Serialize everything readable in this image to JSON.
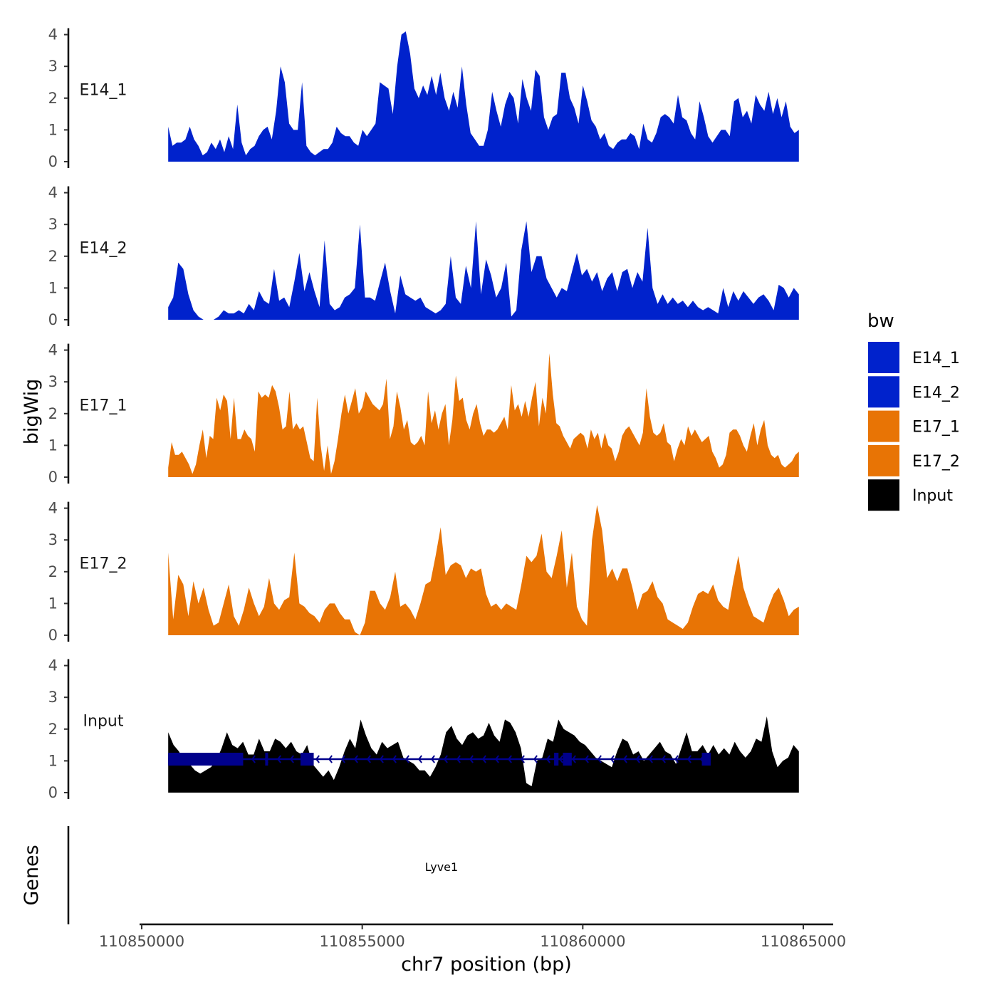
{
  "chart_data": {
    "type": "area",
    "x_label": "chr7 position (bp)",
    "y_label": "bigWig",
    "genes_label": "Genes",
    "x_range": [
      110850000,
      110865000
    ],
    "x_ticks": [
      "110850000",
      "110855000",
      "110860000",
      "110865000"
    ],
    "y_range": [
      0,
      4.2
    ],
    "y_ticks": [
      "0",
      "1",
      "2",
      "3",
      "4"
    ],
    "legend": {
      "title": "bw",
      "items": [
        {
          "label": "E14_1",
          "color": "#0022CC"
        },
        {
          "label": "E14_2",
          "color": "#0022CC"
        },
        {
          "label": "E17_1",
          "color": "#E87405"
        },
        {
          "label": "E17_2",
          "color": "#E87405"
        },
        {
          "label": "Input",
          "color": "#000000"
        }
      ]
    },
    "series": [
      {
        "name": "E14_1",
        "color": "#0022CC",
        "start": 110850600,
        "end": 110864900,
        "values": [
          1.1,
          0.5,
          0.6,
          0.6,
          0.7,
          1.1,
          0.7,
          0.5,
          0.2,
          0.3,
          0.6,
          0.4,
          0.7,
          0.3,
          0.8,
          0.4,
          1.8,
          0.6,
          0.2,
          0.4,
          0.5,
          0.8,
          1.0,
          1.1,
          0.7,
          1.6,
          3.0,
          2.5,
          1.2,
          1.0,
          1.0,
          2.5,
          0.5,
          0.3,
          0.2,
          0.3,
          0.4,
          0.4,
          0.6,
          1.1,
          0.9,
          0.8,
          0.8,
          0.6,
          0.5,
          1.0,
          0.8,
          1.0,
          1.2,
          2.5,
          2.4,
          2.3,
          1.5,
          3.0,
          4.0,
          4.1,
          3.4,
          2.3,
          2.0,
          2.4,
          2.1,
          2.7,
          2.1,
          2.8,
          2.0,
          1.6,
          2.2,
          1.7,
          3.0,
          1.8,
          0.9,
          0.7,
          0.5,
          0.5,
          1.0,
          2.2,
          1.6,
          1.1,
          1.8,
          2.2,
          2.0,
          1.2,
          2.6,
          2.0,
          1.6,
          2.9,
          2.7,
          1.4,
          1.0,
          1.4,
          1.5,
          2.8,
          2.8,
          2.0,
          1.7,
          1.2,
          2.4,
          1.9,
          1.3,
          1.1,
          0.7,
          0.9,
          0.5,
          0.4,
          0.6,
          0.7,
          0.7,
          0.9,
          0.8,
          0.4,
          1.2,
          0.7,
          0.6,
          0.9,
          1.4,
          1.5,
          1.4,
          1.2,
          2.1,
          1.4,
          1.3,
          0.9,
          0.7,
          1.9,
          1.4,
          0.8,
          0.6,
          0.8,
          1.0,
          1.0,
          0.8,
          1.9,
          2.0,
          1.4,
          1.6,
          1.2,
          2.1,
          1.8,
          1.6,
          2.2,
          1.5,
          2.0,
          1.4,
          1.9,
          1.1,
          0.9,
          1.0
        ]
      },
      {
        "name": "E14_2",
        "color": "#0022CC",
        "start": 110850600,
        "end": 110864900,
        "values": [
          0.4,
          0.7,
          1.8,
          1.6,
          0.8,
          0.3,
          0.1,
          0.0,
          0.0,
          0.0,
          0.1,
          0.3,
          0.2,
          0.2,
          0.3,
          0.2,
          0.5,
          0.3,
          0.9,
          0.6,
          0.5,
          1.6,
          0.6,
          0.7,
          0.4,
          1.2,
          2.1,
          0.9,
          1.5,
          0.9,
          0.4,
          2.5,
          0.5,
          0.3,
          0.4,
          0.7,
          0.8,
          1.0,
          3.0,
          0.7,
          0.7,
          0.6,
          1.2,
          1.8,
          0.9,
          0.2,
          1.4,
          0.8,
          0.7,
          0.6,
          0.7,
          0.4,
          0.3,
          0.2,
          0.3,
          0.5,
          2.0,
          0.7,
          0.5,
          1.7,
          1.0,
          3.1,
          0.8,
          1.9,
          1.4,
          0.7,
          1.0,
          1.8,
          0.1,
          0.3,
          2.2,
          3.1,
          1.5,
          2.0,
          2.0,
          1.3,
          1.0,
          0.7,
          1.0,
          0.9,
          1.5,
          2.1,
          1.4,
          1.6,
          1.2,
          1.5,
          0.9,
          1.3,
          1.5,
          0.9,
          1.5,
          1.6,
          1.0,
          1.5,
          1.2,
          2.9,
          1.0,
          0.5,
          0.8,
          0.5,
          0.7,
          0.5,
          0.6,
          0.4,
          0.6,
          0.4,
          0.3,
          0.4,
          0.3,
          0.2,
          1.0,
          0.4,
          0.9,
          0.6,
          0.9,
          0.7,
          0.5,
          0.7,
          0.8,
          0.6,
          0.3,
          1.1,
          1.0,
          0.7,
          1.0,
          0.8
        ]
      },
      {
        "name": "E17_1",
        "color": "#E87405",
        "start": 110850600,
        "end": 110864900,
        "values": [
          0.3,
          1.1,
          0.7,
          0.7,
          0.8,
          0.6,
          0.4,
          0.1,
          0.4,
          1.0,
          1.5,
          0.6,
          1.3,
          1.2,
          2.5,
          2.1,
          2.6,
          2.4,
          1.2,
          2.5,
          1.2,
          1.2,
          1.5,
          1.3,
          1.2,
          0.8,
          2.7,
          2.5,
          2.6,
          2.5,
          2.9,
          2.7,
          2.2,
          1.5,
          1.6,
          2.7,
          1.5,
          1.7,
          1.5,
          1.6,
          1.1,
          0.6,
          0.5,
          2.5,
          1.0,
          0.2,
          1.0,
          0.1,
          0.5,
          1.2,
          2.0,
          2.6,
          2.0,
          2.4,
          2.8,
          2.0,
          2.2,
          2.7,
          2.5,
          2.3,
          2.2,
          2.1,
          2.3,
          3.1,
          1.2,
          1.6,
          2.7,
          2.2,
          1.5,
          1.8,
          1.1,
          1.0,
          1.1,
          1.3,
          1.0,
          2.7,
          1.7,
          2.1,
          1.5,
          2.0,
          2.3,
          1.0,
          1.8,
          3.2,
          2.4,
          2.5,
          1.8,
          1.5,
          2.0,
          2.3,
          1.7,
          1.3,
          1.5,
          1.5,
          1.4,
          1.5,
          1.7,
          1.9,
          1.5,
          2.9,
          2.1,
          2.3,
          1.9,
          2.4,
          1.9,
          2.5,
          3.0,
          1.6,
          2.5,
          2.0,
          3.9,
          2.6,
          1.7,
          1.6,
          1.3,
          1.1,
          0.9,
          1.2,
          1.3,
          1.4,
          1.3,
          0.9,
          1.5,
          1.2,
          1.4,
          0.9,
          1.4,
          1.0,
          0.9,
          0.5,
          0.8,
          1.3,
          1.5,
          1.6,
          1.4,
          1.2,
          1.0,
          1.4,
          2.8,
          1.9,
          1.4,
          1.3,
          1.4,
          1.7,
          1.1,
          1.0,
          0.5,
          0.9,
          1.2,
          1.0,
          1.6,
          1.3,
          1.5,
          1.3,
          1.1,
          1.2,
          1.3,
          0.8,
          0.6,
          0.3,
          0.4,
          0.7,
          1.4,
          1.5,
          1.5,
          1.3,
          1.0,
          0.8,
          1.3,
          1.7,
          1.0,
          1.5,
          1.8,
          1.0,
          0.7,
          0.6,
          0.7,
          0.4,
          0.3,
          0.4,
          0.5,
          0.7,
          0.8
        ]
      },
      {
        "name": "E17_2",
        "color": "#E87405",
        "start": 110850600,
        "end": 110864900,
        "values": [
          2.6,
          0.5,
          1.9,
          1.6,
          0.6,
          1.7,
          1.0,
          1.5,
          0.8,
          0.3,
          0.4,
          1.0,
          1.6,
          0.6,
          0.3,
          0.8,
          1.5,
          1.0,
          0.6,
          0.9,
          1.8,
          1.0,
          0.8,
          1.1,
          1.2,
          2.6,
          1.0,
          0.9,
          0.7,
          0.6,
          0.4,
          0.8,
          1.0,
          1.0,
          0.7,
          0.5,
          0.5,
          0.1,
          0.0,
          0.4,
          1.4,
          1.4,
          1.0,
          0.8,
          1.2,
          2.0,
          0.9,
          1.0,
          0.8,
          0.5,
          1.0,
          1.6,
          1.7,
          2.5,
          3.4,
          1.9,
          2.2,
          2.3,
          2.2,
          1.8,
          2.1,
          2.0,
          2.1,
          1.3,
          0.9,
          1.0,
          0.8,
          1.0,
          0.9,
          0.8,
          1.6,
          2.5,
          2.3,
          2.5,
          3.2,
          2.0,
          1.8,
          2.5,
          3.3,
          1.5,
          2.6,
          0.9,
          0.5,
          0.3,
          3.0,
          4.1,
          3.3,
          1.8,
          2.1,
          1.7,
          2.1,
          2.1,
          1.5,
          0.8,
          1.3,
          1.4,
          1.7,
          1.2,
          1.0,
          0.5,
          0.4,
          0.3,
          0.2,
          0.4,
          0.9,
          1.3,
          1.4,
          1.3,
          1.6,
          1.1,
          0.9,
          0.8,
          1.7,
          2.5,
          1.5,
          1.0,
          0.6,
          0.5,
          0.4,
          0.9,
          1.3,
          1.5,
          1.1,
          0.6,
          0.8,
          0.9
        ]
      },
      {
        "name": "Input",
        "color": "#000000",
        "start": 110850600,
        "end": 110864900,
        "values": [
          1.9,
          1.5,
          1.3,
          1.0,
          0.9,
          0.7,
          0.6,
          0.7,
          0.8,
          1.0,
          1.4,
          1.9,
          1.5,
          1.4,
          1.6,
          1.2,
          1.2,
          1.7,
          1.3,
          1.3,
          1.7,
          1.6,
          1.4,
          1.6,
          1.3,
          1.2,
          1.5,
          0.9,
          0.7,
          0.5,
          0.7,
          0.4,
          0.8,
          1.3,
          1.7,
          1.4,
          2.3,
          1.8,
          1.4,
          1.2,
          1.6,
          1.4,
          1.5,
          1.6,
          1.1,
          1.0,
          0.9,
          0.7,
          0.7,
          0.5,
          0.8,
          1.2,
          1.9,
          2.1,
          1.7,
          1.5,
          1.8,
          1.9,
          1.7,
          1.8,
          2.2,
          1.8,
          1.6,
          2.3,
          2.2,
          1.9,
          1.4,
          0.3,
          0.2,
          1.0,
          1.1,
          1.7,
          1.6,
          2.3,
          2.0,
          1.9,
          1.8,
          1.6,
          1.5,
          1.3,
          1.1,
          1.0,
          0.9,
          0.8,
          1.3,
          1.7,
          1.6,
          1.2,
          1.3,
          1.0,
          1.2,
          1.4,
          1.6,
          1.3,
          1.2,
          0.9,
          1.4,
          1.9,
          1.3,
          1.3,
          1.5,
          1.2,
          1.5,
          1.2,
          1.4,
          1.2,
          1.6,
          1.3,
          1.1,
          1.3,
          1.7,
          1.6,
          2.4,
          1.3,
          0.8,
          1.0,
          1.1,
          1.5,
          1.3
        ]
      }
    ],
    "gene": {
      "name": "Lyve1",
      "strand": "-",
      "start": 110850600,
      "end": 110862900,
      "color": "#00008B",
      "exons": [
        [
          110850600,
          110852300
        ],
        [
          110852800,
          110852850
        ],
        [
          110853600,
          110853900
        ],
        [
          110859350,
          110859450
        ],
        [
          110859550,
          110859750
        ],
        [
          110862700,
          110862900
        ]
      ]
    }
  }
}
